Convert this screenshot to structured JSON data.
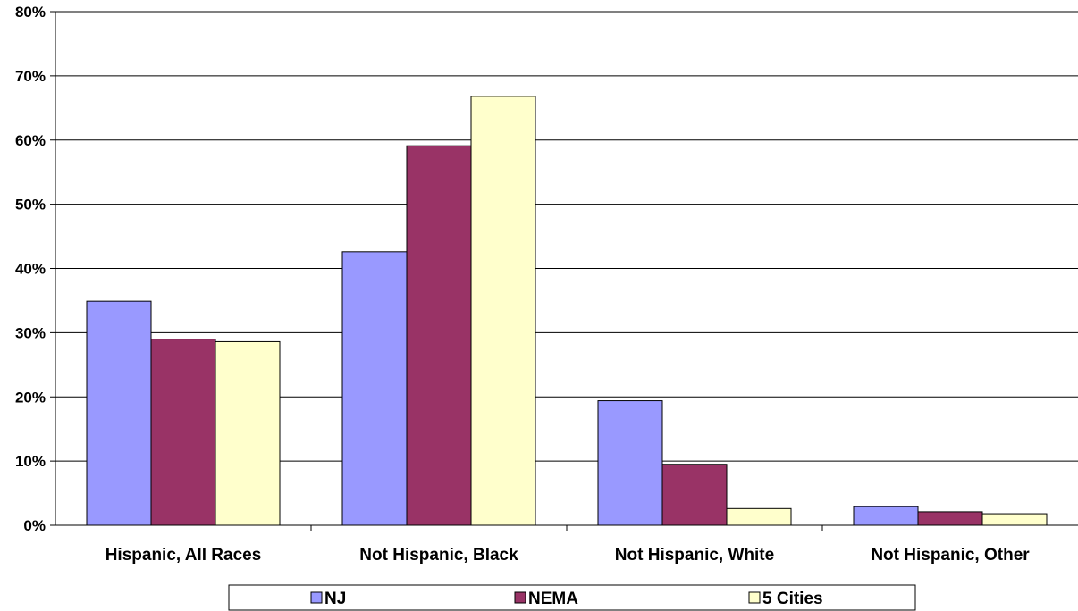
{
  "chart_data": {
    "type": "bar",
    "categories": [
      "Hispanic, All Races",
      "Not Hispanic, Black",
      "Not Hispanic, White",
      "Not Hispanic, Other"
    ],
    "series": [
      {
        "name": "NJ",
        "values": [
          34.9,
          42.6,
          19.4,
          2.9
        ],
        "color": "#9999ff"
      },
      {
        "name": "NEMA",
        "values": [
          29.0,
          59.1,
          9.5,
          2.1
        ],
        "color": "#993366"
      },
      {
        "name": "5 Cities",
        "values": [
          28.6,
          66.8,
          2.6,
          1.8
        ],
        "color": "#ffffcc"
      }
    ],
    "ylim": [
      0,
      80
    ],
    "yticks": [
      0,
      10,
      20,
      30,
      40,
      50,
      60,
      70,
      80
    ],
    "ytick_labels": [
      "0%",
      "10%",
      "20%",
      "30%",
      "40%",
      "50%",
      "60%",
      "70%",
      "80%"
    ],
    "title": "",
    "xlabel": "",
    "ylabel": "",
    "grid": true,
    "legend_position": "bottom"
  }
}
